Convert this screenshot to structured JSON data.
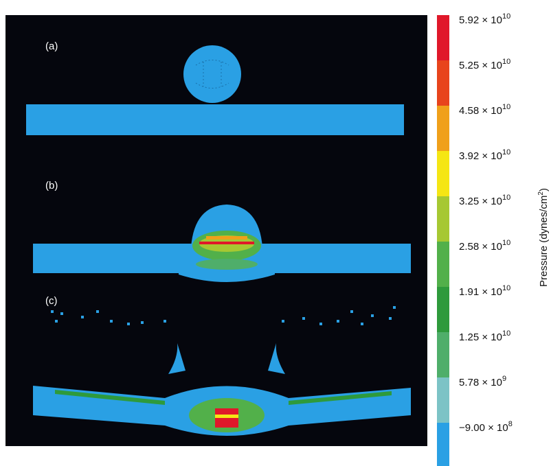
{
  "panels": {
    "a": "(a)",
    "b": "(b)",
    "c": "(c)"
  },
  "colorbar": {
    "colors": [
      "#e0182a",
      "#e8441c",
      "#f0a01a",
      "#f5e614",
      "#a6c832",
      "#52b04a",
      "#2e9a3c",
      "#4fae6a",
      "#7cc3c6",
      "#2aa0e4"
    ],
    "labels": [
      {
        "base": "5.92 × 10",
        "exponent": "10"
      },
      {
        "base": "5.25 × 10",
        "exponent": "10"
      },
      {
        "base": "4.58 × 10",
        "exponent": "10"
      },
      {
        "base": "3.92 × 10",
        "exponent": "10"
      },
      {
        "base": "3.25 × 10",
        "exponent": "10"
      },
      {
        "base": "2.58 × 10",
        "exponent": "10"
      },
      {
        "base": "1.91 × 10",
        "exponent": "10"
      },
      {
        "base": "1.25 × 10",
        "exponent": "10"
      },
      {
        "base": "5.78 × 10",
        "exponent": "9"
      },
      {
        "base": "−9.00 × 10",
        "exponent": "8"
      }
    ],
    "title": {
      "text": "Pressure (dynes/cm",
      "superscript": "2",
      "suffix": ")"
    }
  }
}
